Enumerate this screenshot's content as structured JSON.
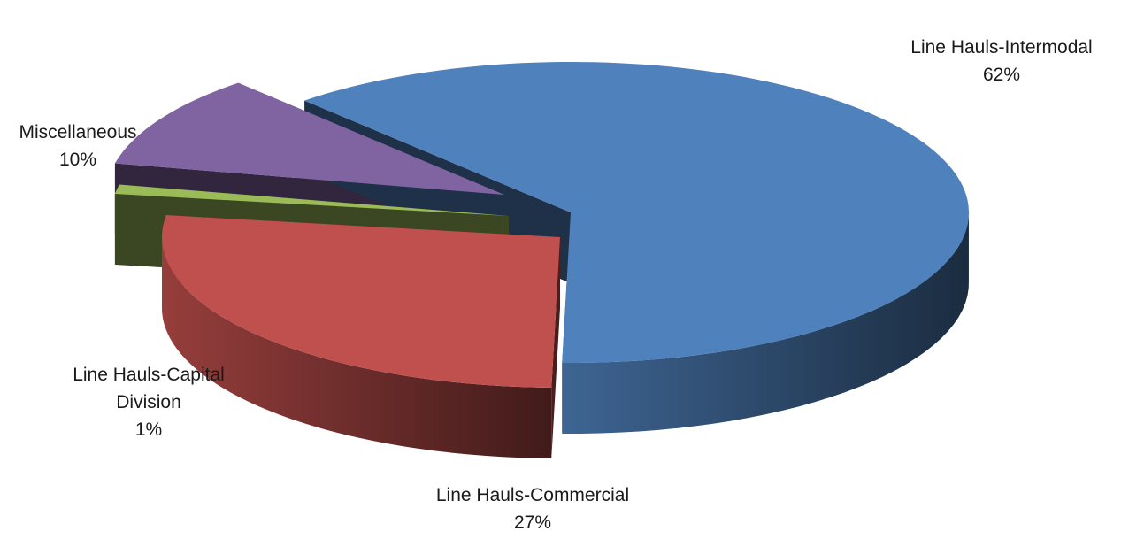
{
  "chart_data": {
    "type": "pie",
    "title": "",
    "exploded": true,
    "three_d": true,
    "slices": [
      {
        "label": "Line Hauls-Intermodal",
        "label_lines": [
          "Line Hauls-Intermodal"
        ],
        "percent_label": "62%",
        "value": 62,
        "color": "#4F81BD"
      },
      {
        "label": "Line Hauls-Commercial",
        "label_lines": [
          "Line Hauls-Commercial"
        ],
        "percent_label": "27%",
        "value": 27,
        "color": "#C0504D"
      },
      {
        "label": "Line Hauls-Capital Division",
        "label_lines": [
          "Line Hauls-Capital",
          "Division"
        ],
        "percent_label": "1%",
        "value": 1,
        "color": "#9BBB59"
      },
      {
        "label": "Miscellaneous",
        "label_lines": [
          "Miscellaneous"
        ],
        "percent_label": "10%",
        "value": 10,
        "color": "#8064A2"
      }
    ]
  }
}
